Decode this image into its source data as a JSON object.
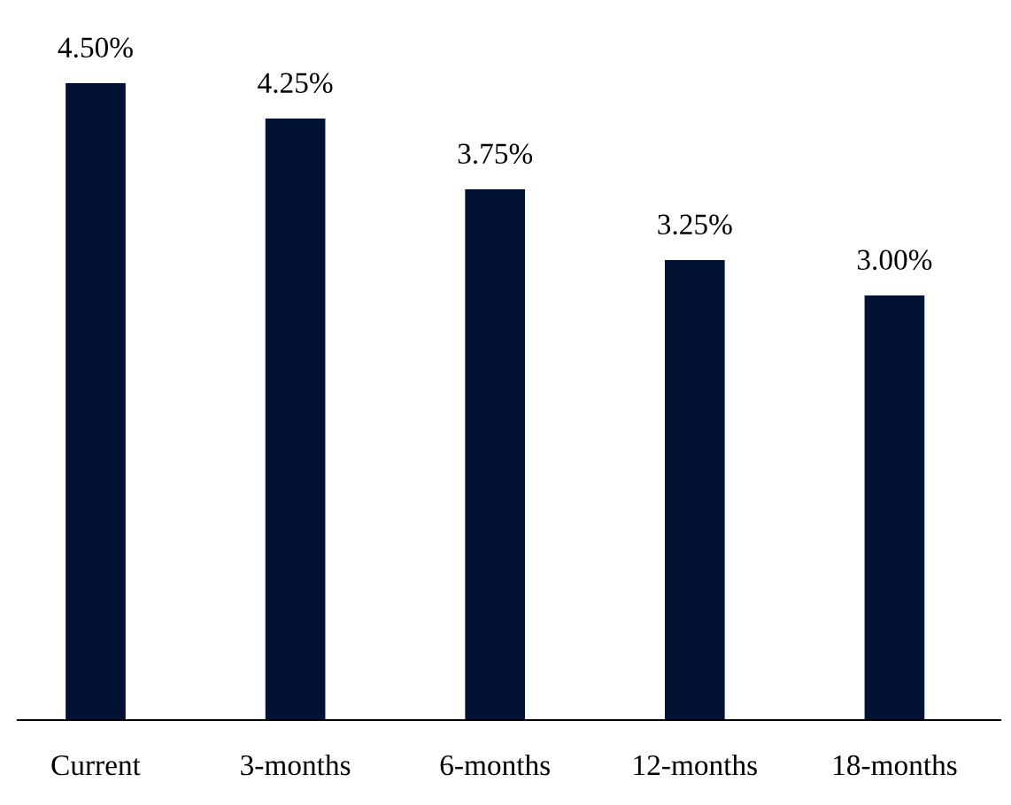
{
  "chart_data": {
    "type": "bar",
    "categories": [
      "Current",
      "3-months",
      "6-months",
      "12-months",
      "18-months"
    ],
    "values": [
      4.5,
      4.25,
      3.75,
      3.25,
      3.0
    ],
    "value_labels": [
      "4.50%",
      "4.25%",
      "3.75%",
      "3.25%",
      "3.00%"
    ],
    "color": "#021233",
    "grid": false,
    "legend": false
  }
}
